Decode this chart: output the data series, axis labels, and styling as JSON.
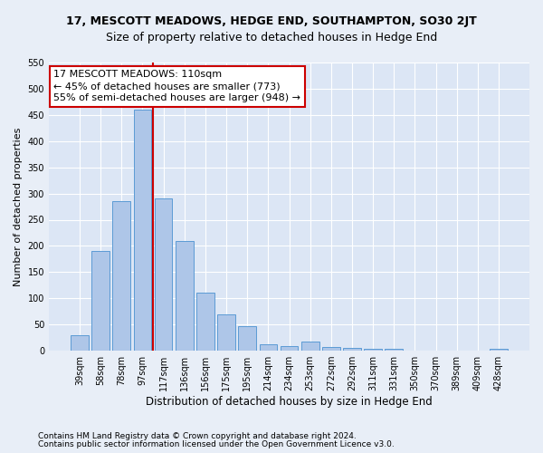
{
  "title": "17, MESCOTT MEADOWS, HEDGE END, SOUTHAMPTON, SO30 2JT",
  "subtitle": "Size of property relative to detached houses in Hedge End",
  "xlabel": "Distribution of detached houses by size in Hedge End",
  "ylabel": "Number of detached properties",
  "categories": [
    "39sqm",
    "58sqm",
    "78sqm",
    "97sqm",
    "117sqm",
    "136sqm",
    "156sqm",
    "175sqm",
    "195sqm",
    "214sqm",
    "234sqm",
    "253sqm",
    "272sqm",
    "292sqm",
    "311sqm",
    "331sqm",
    "350sqm",
    "370sqm",
    "389sqm",
    "409sqm",
    "428sqm"
  ],
  "values": [
    30,
    190,
    285,
    460,
    290,
    210,
    110,
    70,
    47,
    12,
    8,
    18,
    7,
    6,
    4,
    3,
    0,
    0,
    0,
    0,
    4
  ],
  "bar_color": "#aec6e8",
  "bar_edge_color": "#5b9bd5",
  "vline_x_index": 3.5,
  "annotation_line1": "17 MESCOTT MEADOWS: 110sqm",
  "annotation_line2": "← 45% of detached houses are smaller (773)",
  "annotation_line3": "55% of semi-detached houses are larger (948) →",
  "vline_color": "#cc0000",
  "annotation_box_facecolor": "#ffffff",
  "annotation_box_edgecolor": "#cc0000",
  "ylim_max": 550,
  "yticks": [
    0,
    50,
    100,
    150,
    200,
    250,
    300,
    350,
    400,
    450,
    500,
    550
  ],
  "footer_line1": "Contains HM Land Registry data © Crown copyright and database right 2024.",
  "footer_line2": "Contains public sector information licensed under the Open Government Licence v3.0.",
  "fig_facecolor": "#e8eef7",
  "ax_facecolor": "#dce6f5",
  "grid_color": "#ffffff",
  "title_fontsize": 9,
  "subtitle_fontsize": 9,
  "xlabel_fontsize": 8.5,
  "ylabel_fontsize": 8,
  "tick_fontsize": 7,
  "annotation_fontsize": 8,
  "footer_fontsize": 6.5
}
